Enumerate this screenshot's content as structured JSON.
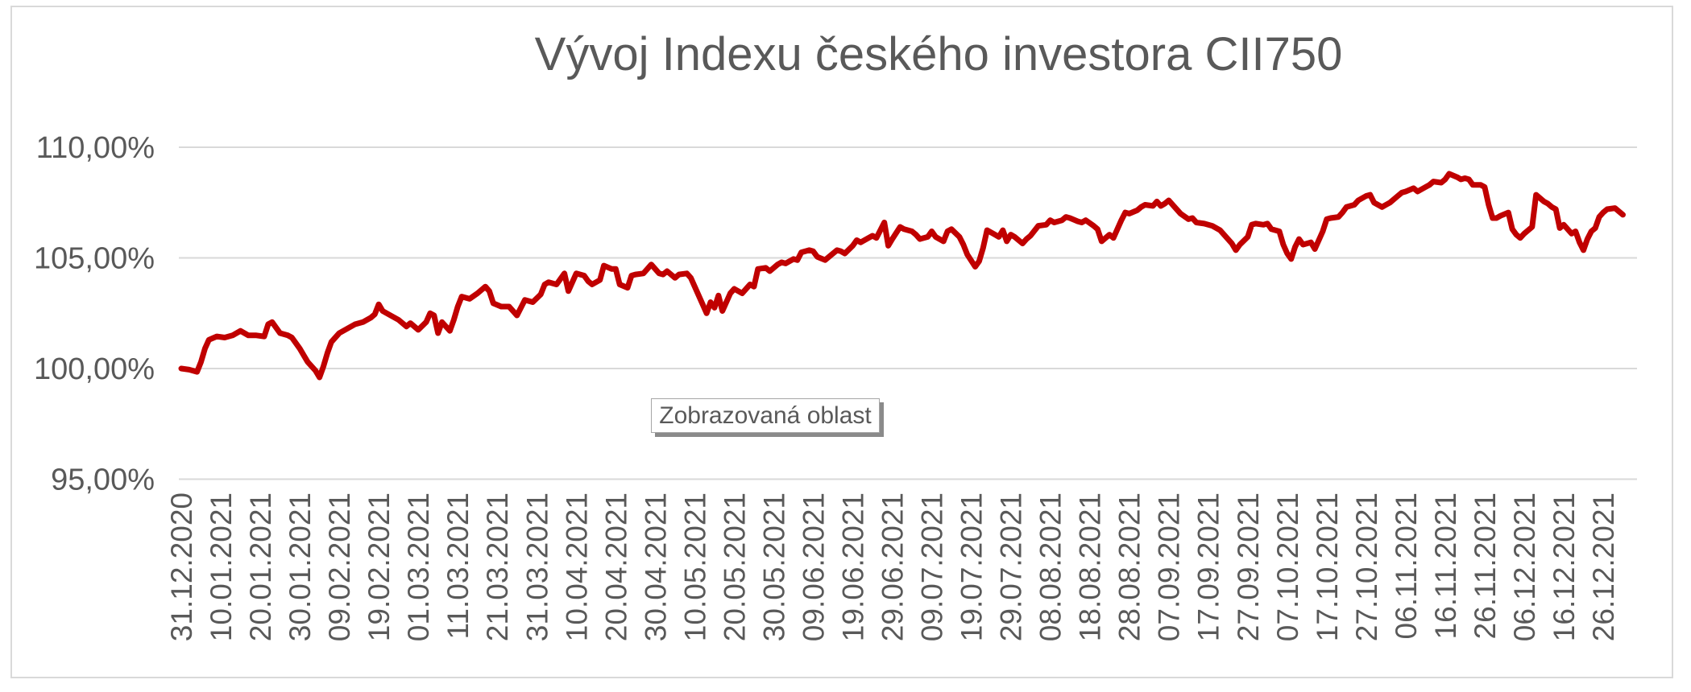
{
  "page": {
    "background_color": "#FFFFFF",
    "frame_border_color": "#D9D9D9"
  },
  "colors": {
    "series_line": "#C00000",
    "gridline": "#D9D9D9",
    "axis_text": "#595959",
    "title_text": "#595959",
    "annotation_border": "#A6A6A6",
    "annotation_shadow": "#8A8A8A"
  },
  "annotation": {
    "label": "Zobrazovaná oblast"
  },
  "chart_data": {
    "type": "line",
    "title": "Vývoj Indexu českého investora CII750",
    "xlabel": "",
    "ylabel": "",
    "legend": "none",
    "grid": "horizontal",
    "ylim": [
      95,
      110
    ],
    "y_ticks_pct": [
      110,
      105,
      100,
      95
    ],
    "y_tick_labels": [
      "110,00%",
      "105,00%",
      "100,00%",
      "95,00%"
    ],
    "x_tick_interval_days": 10,
    "xlim_days": [
      0,
      365
    ],
    "x_tick_labels": [
      "31.12.2020",
      "10.01.2021",
      "20.01.2021",
      "30.01.2021",
      "09.02.2021",
      "19.02.2021",
      "01.03.2021",
      "11.03.2021",
      "21.03.2021",
      "31.03.2021",
      "10.04.2021",
      "20.04.2021",
      "30.04.2021",
      "10.05.2021",
      "20.05.2021",
      "30.05.2021",
      "09.06.2021",
      "19.06.2021",
      "29.06.2021",
      "09.07.2021",
      "19.07.2021",
      "29.07.2021",
      "08.08.2021",
      "18.08.2021",
      "28.08.2021",
      "07.09.2021",
      "17.09.2021",
      "27.09.2021",
      "07.10.2021",
      "17.10.2021",
      "27.10.2021",
      "06.11.2021",
      "16.11.2021",
      "26.11.2021",
      "06.12.2021",
      "16.12.2021",
      "26.12.2021"
    ],
    "series": [
      {
        "name": "CII750",
        "unit": "percent_of_start",
        "points_format": [
          "day_offset_from_31.12.2020",
          "value_percent"
        ],
        "points": [
          [
            0,
            100.0
          ],
          [
            2,
            99.95
          ],
          [
            4,
            99.85
          ],
          [
            5,
            100.3
          ],
          [
            6,
            100.9
          ],
          [
            7,
            101.3
          ],
          [
            9,
            101.45
          ],
          [
            11,
            101.4
          ],
          [
            13,
            101.5
          ],
          [
            15,
            101.7
          ],
          [
            17,
            101.5
          ],
          [
            19,
            101.5
          ],
          [
            21,
            101.45
          ],
          [
            22,
            102.0
          ],
          [
            23,
            102.1
          ],
          [
            25,
            101.6
          ],
          [
            27,
            101.5
          ],
          [
            28,
            101.4
          ],
          [
            30,
            100.9
          ],
          [
            32,
            100.3
          ],
          [
            34,
            99.9
          ],
          [
            35,
            99.6
          ],
          [
            36,
            100.1
          ],
          [
            37,
            100.7
          ],
          [
            38,
            101.2
          ],
          [
            40,
            101.6
          ],
          [
            42,
            101.8
          ],
          [
            44,
            102.0
          ],
          [
            46,
            102.1
          ],
          [
            48,
            102.3
          ],
          [
            49,
            102.45
          ],
          [
            50,
            102.9
          ],
          [
            51,
            102.6
          ],
          [
            53,
            102.4
          ],
          [
            55,
            102.2
          ],
          [
            57,
            101.9
          ],
          [
            58,
            102.05
          ],
          [
            60,
            101.75
          ],
          [
            62,
            102.1
          ],
          [
            63,
            102.5
          ],
          [
            64,
            102.4
          ],
          [
            65,
            101.6
          ],
          [
            66,
            102.1
          ],
          [
            68,
            101.7
          ],
          [
            69,
            102.2
          ],
          [
            70,
            102.8
          ],
          [
            71,
            103.25
          ],
          [
            73,
            103.15
          ],
          [
            75,
            103.4
          ],
          [
            77,
            103.7
          ],
          [
            78,
            103.5
          ],
          [
            79,
            102.95
          ],
          [
            81,
            102.8
          ],
          [
            83,
            102.8
          ],
          [
            85,
            102.4
          ],
          [
            87,
            103.1
          ],
          [
            89,
            103.0
          ],
          [
            91,
            103.35
          ],
          [
            92,
            103.8
          ],
          [
            93,
            103.9
          ],
          [
            95,
            103.8
          ],
          [
            97,
            104.3
          ],
          [
            98,
            103.5
          ],
          [
            100,
            104.3
          ],
          [
            102,
            104.2
          ],
          [
            103,
            103.95
          ],
          [
            104,
            103.8
          ],
          [
            106,
            104.0
          ],
          [
            107,
            104.65
          ],
          [
            109,
            104.5
          ],
          [
            110,
            104.5
          ],
          [
            111,
            103.8
          ],
          [
            113,
            103.65
          ],
          [
            114,
            104.2
          ],
          [
            115,
            104.25
          ],
          [
            117,
            104.3
          ],
          [
            118,
            104.5
          ],
          [
            119,
            104.7
          ],
          [
            121,
            104.3
          ],
          [
            122,
            104.25
          ],
          [
            123,
            104.4
          ],
          [
            125,
            104.1
          ],
          [
            126,
            104.25
          ],
          [
            128,
            104.3
          ],
          [
            129,
            104.1
          ],
          [
            131,
            103.3
          ],
          [
            133,
            102.5
          ],
          [
            134,
            103.0
          ],
          [
            135,
            102.75
          ],
          [
            136,
            103.3
          ],
          [
            137,
            102.6
          ],
          [
            139,
            103.4
          ],
          [
            140,
            103.6
          ],
          [
            142,
            103.4
          ],
          [
            144,
            103.8
          ],
          [
            145,
            103.7
          ],
          [
            146,
            104.5
          ],
          [
            148,
            104.55
          ],
          [
            149,
            104.4
          ],
          [
            151,
            104.7
          ],
          [
            152,
            104.8
          ],
          [
            153,
            104.75
          ],
          [
            155,
            104.95
          ],
          [
            156,
            104.9
          ],
          [
            157,
            105.25
          ],
          [
            159,
            105.35
          ],
          [
            160,
            105.3
          ],
          [
            161,
            105.05
          ],
          [
            163,
            104.9
          ],
          [
            164,
            105.05
          ],
          [
            166,
            105.35
          ],
          [
            167,
            105.3
          ],
          [
            168,
            105.2
          ],
          [
            170,
            105.55
          ],
          [
            171,
            105.8
          ],
          [
            172,
            105.7
          ],
          [
            174,
            105.9
          ],
          [
            175,
            106.0
          ],
          [
            176,
            105.9
          ],
          [
            178,
            106.6
          ],
          [
            179,
            105.55
          ],
          [
            180,
            105.85
          ],
          [
            182,
            106.4
          ],
          [
            183,
            106.3
          ],
          [
            185,
            106.2
          ],
          [
            186,
            106.05
          ],
          [
            187,
            105.85
          ],
          [
            189,
            105.95
          ],
          [
            190,
            106.2
          ],
          [
            191,
            105.95
          ],
          [
            193,
            105.75
          ],
          [
            194,
            106.2
          ],
          [
            195,
            106.3
          ],
          [
            197,
            105.95
          ],
          [
            198,
            105.6
          ],
          [
            199,
            105.15
          ],
          [
            201,
            104.6
          ],
          [
            202,
            104.85
          ],
          [
            203,
            105.45
          ],
          [
            204,
            106.25
          ],
          [
            206,
            106.05
          ],
          [
            207,
            105.95
          ],
          [
            208,
            106.25
          ],
          [
            209,
            105.75
          ],
          [
            210,
            106.05
          ],
          [
            211,
            105.95
          ],
          [
            213,
            105.65
          ],
          [
            214,
            105.85
          ],
          [
            215,
            106.0
          ],
          [
            217,
            106.45
          ],
          [
            219,
            106.5
          ],
          [
            220,
            106.7
          ],
          [
            221,
            106.6
          ],
          [
            223,
            106.7
          ],
          [
            224,
            106.85
          ],
          [
            225,
            106.8
          ],
          [
            227,
            106.65
          ],
          [
            228,
            106.6
          ],
          [
            229,
            106.7
          ],
          [
            231,
            106.45
          ],
          [
            232,
            106.3
          ],
          [
            233,
            105.75
          ],
          [
            235,
            106.05
          ],
          [
            236,
            105.9
          ],
          [
            238,
            106.7
          ],
          [
            239,
            107.05
          ],
          [
            240,
            107.0
          ],
          [
            242,
            107.15
          ],
          [
            243,
            107.3
          ],
          [
            244,
            107.4
          ],
          [
            246,
            107.35
          ],
          [
            247,
            107.55
          ],
          [
            248,
            107.35
          ],
          [
            249,
            107.45
          ],
          [
            250,
            107.6
          ],
          [
            252,
            107.2
          ],
          [
            253,
            107.0
          ],
          [
            255,
            106.75
          ],
          [
            256,
            106.8
          ],
          [
            257,
            106.6
          ],
          [
            259,
            106.55
          ],
          [
            260,
            106.5
          ],
          [
            261,
            106.45
          ],
          [
            263,
            106.25
          ],
          [
            264,
            106.05
          ],
          [
            266,
            105.65
          ],
          [
            267,
            105.35
          ],
          [
            268,
            105.6
          ],
          [
            270,
            105.95
          ],
          [
            271,
            106.5
          ],
          [
            272,
            106.55
          ],
          [
            274,
            106.5
          ],
          [
            275,
            106.55
          ],
          [
            276,
            106.3
          ],
          [
            278,
            106.2
          ],
          [
            279,
            105.6
          ],
          [
            280,
            105.2
          ],
          [
            281,
            104.95
          ],
          [
            282,
            105.5
          ],
          [
            283,
            105.85
          ],
          [
            284,
            105.6
          ],
          [
            286,
            105.7
          ],
          [
            287,
            105.4
          ],
          [
            289,
            106.2
          ],
          [
            290,
            106.75
          ],
          [
            291,
            106.8
          ],
          [
            293,
            106.85
          ],
          [
            294,
            107.05
          ],
          [
            295,
            107.3
          ],
          [
            297,
            107.4
          ],
          [
            298,
            107.6
          ],
          [
            300,
            107.8
          ],
          [
            301,
            107.85
          ],
          [
            302,
            107.5
          ],
          [
            304,
            107.3
          ],
          [
            305,
            107.4
          ],
          [
            306,
            107.5
          ],
          [
            308,
            107.8
          ],
          [
            309,
            107.95
          ],
          [
            310,
            108.0
          ],
          [
            312,
            108.15
          ],
          [
            313,
            108.0
          ],
          [
            315,
            108.2
          ],
          [
            316,
            108.3
          ],
          [
            317,
            108.45
          ],
          [
            319,
            108.4
          ],
          [
            320,
            108.55
          ],
          [
            321,
            108.8
          ],
          [
            323,
            108.65
          ],
          [
            324,
            108.55
          ],
          [
            325,
            108.6
          ],
          [
            326,
            108.55
          ],
          [
            327,
            108.3
          ],
          [
            329,
            108.3
          ],
          [
            330,
            108.2
          ],
          [
            331,
            107.4
          ],
          [
            332,
            106.8
          ],
          [
            333,
            106.8
          ],
          [
            334,
            106.9
          ],
          [
            336,
            107.05
          ],
          [
            337,
            106.3
          ],
          [
            338,
            106.05
          ],
          [
            339,
            105.9
          ],
          [
            340,
            106.1
          ],
          [
            342,
            106.4
          ],
          [
            343,
            107.85
          ],
          [
            345,
            107.55
          ],
          [
            346,
            107.45
          ],
          [
            347,
            107.3
          ],
          [
            348,
            107.2
          ],
          [
            349,
            106.35
          ],
          [
            350,
            106.5
          ],
          [
            352,
            106.1
          ],
          [
            353,
            106.2
          ],
          [
            354,
            105.7
          ],
          [
            355,
            105.35
          ],
          [
            356,
            105.85
          ],
          [
            357,
            106.2
          ],
          [
            358,
            106.35
          ],
          [
            359,
            106.85
          ],
          [
            360,
            107.05
          ],
          [
            361,
            107.2
          ],
          [
            363,
            107.25
          ],
          [
            364,
            107.1
          ],
          [
            365,
            106.95
          ]
        ]
      }
    ]
  }
}
